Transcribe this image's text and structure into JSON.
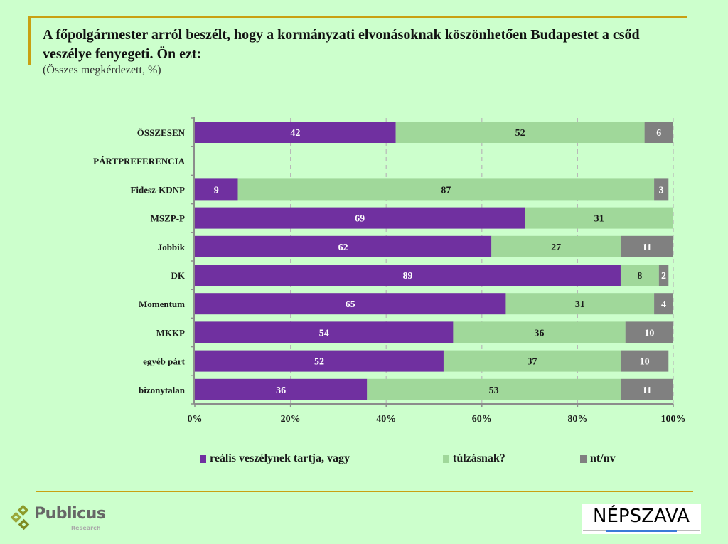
{
  "header": {
    "title": "A főpolgármester arról beszélt, hogy a kormányzati elvonásoknak köszönhetően Budapestet a csőd veszélye fenyegeti. Ön ezt:",
    "subtitle": "(Összes megkérdezett, %)"
  },
  "colors": {
    "series_real": "#7030a0",
    "series_exaggeration": "#a0d89a",
    "series_dk": "#808080",
    "accent_line": "#c9a012",
    "background": "#ccffcc"
  },
  "chart_data": {
    "type": "bar",
    "orientation": "horizontal",
    "stacked": "percent",
    "title": "A főpolgármester arról beszélt, hogy a kormányzati elvonásoknak köszönhetően Budapestet a csőd veszélye fenyegeti. Ön ezt:",
    "subtitle": "(Összes megkérdezett, %)",
    "xlabel": "",
    "ylabel": "",
    "xlim": [
      0,
      100
    ],
    "x_ticks": [
      "0%",
      "20%",
      "40%",
      "60%",
      "80%",
      "100%"
    ],
    "grid": "vertical dashed",
    "legend_position": "bottom",
    "categories": [
      "ÖSSZESEN",
      "PÁRTPREFERENCIA",
      "Fidesz-KDNP",
      "MSZP-P",
      "Jobbik",
      "DK",
      "Momentum",
      "MKKP",
      "egyéb párt",
      "bizonytalan"
    ],
    "series": [
      {
        "name": "reális veszélynek tartja, vagy",
        "color": "#7030a0",
        "values": [
          42,
          null,
          9,
          69,
          62,
          89,
          65,
          54,
          52,
          36
        ]
      },
      {
        "name": "túlzásnak?",
        "color": "#a0d89a",
        "values": [
          52,
          null,
          87,
          31,
          27,
          8,
          31,
          36,
          37,
          53
        ]
      },
      {
        "name": "nt/nv",
        "color": "#808080",
        "values": [
          6,
          null,
          3,
          0,
          11,
          2,
          4,
          10,
          10,
          11
        ]
      }
    ]
  },
  "legend": [
    {
      "label": "reális veszélynek tartja, vagy",
      "color": "#7030a0"
    },
    {
      "label": "túlzásnak?",
      "color": "#a0d89a"
    },
    {
      "label": "nt/nv",
      "color": "#808080"
    }
  ],
  "footer": {
    "left_logo": {
      "name": "Publicus",
      "sub": "Research"
    },
    "right_logo": {
      "name": "NÉPSZAVA"
    }
  }
}
